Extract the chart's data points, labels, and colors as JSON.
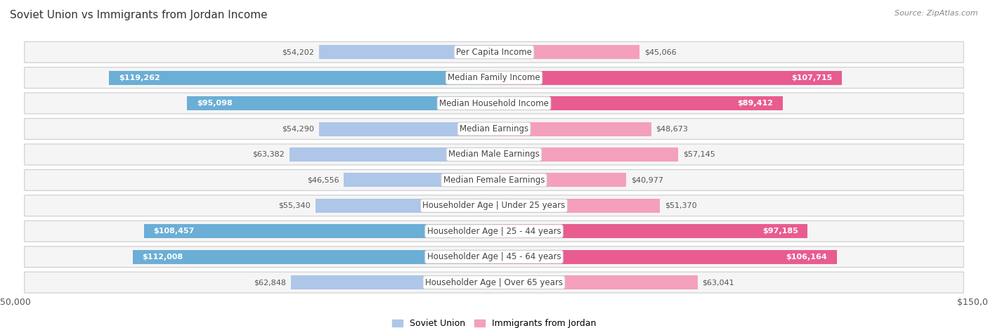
{
  "title": "Soviet Union vs Immigrants from Jordan Income",
  "source": "Source: ZipAtlas.com",
  "categories": [
    "Per Capita Income",
    "Median Family Income",
    "Median Household Income",
    "Median Earnings",
    "Median Male Earnings",
    "Median Female Earnings",
    "Householder Age | Under 25 years",
    "Householder Age | 25 - 44 years",
    "Householder Age | 45 - 64 years",
    "Householder Age | Over 65 years"
  ],
  "soviet_values": [
    54202,
    119262,
    95098,
    54290,
    63382,
    46556,
    55340,
    108457,
    112008,
    62848
  ],
  "jordan_values": [
    45066,
    107715,
    89412,
    48673,
    57145,
    40977,
    51370,
    97185,
    106164,
    63041
  ],
  "soviet_color_light": "#aec6e8",
  "soviet_color_dark": "#6baed6",
  "jordan_color_light": "#f4a0bc",
  "jordan_color_dark": "#e85c90",
  "max_val": 150000,
  "inside_threshold": 0.5,
  "row_bg": "#f0f0f0",
  "row_border": "#d8d8d8",
  "label_font_size": 8.5,
  "title_font_size": 11,
  "value_font_size": 8,
  "source_font_size": 8
}
